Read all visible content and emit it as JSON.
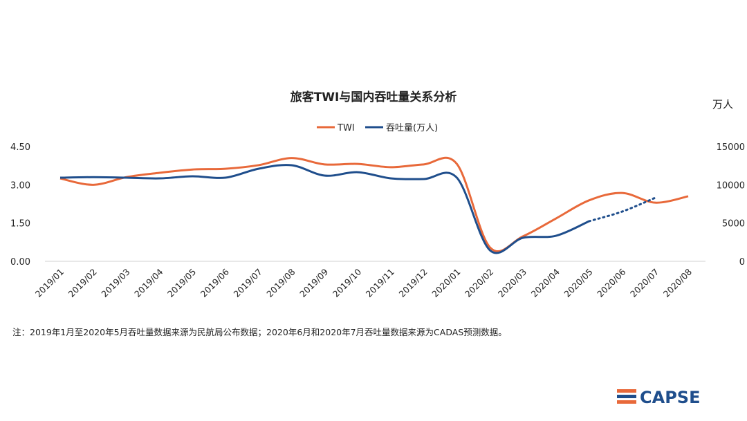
{
  "chart_data": {
    "type": "line",
    "title": "旅客TWI与国内吞吐量关系分析",
    "y2_label": "万人",
    "note": "注：2019年1月至2020年5月吞吐量数据来源为民航局公布数据；2020年6月和2020年7月吞吐量数据来源为CADAS预测数据。",
    "brand": "CAPSE",
    "categories": [
      "2019/01",
      "2019/02",
      "2019/03",
      "2019/04",
      "2019/05",
      "2019/06",
      "2019/07",
      "2019/08",
      "2019/09",
      "2019/10",
      "2019/11",
      "2019/12",
      "2020/01",
      "2020/02",
      "2020/03",
      "2020/04",
      "2020/05",
      "2020/06",
      "2020/07",
      "2020/08"
    ],
    "series": [
      {
        "name": "TWI",
        "color": "#e8693a",
        "values": [
          3.25,
          3.0,
          3.3,
          3.47,
          3.6,
          3.63,
          3.77,
          4.05,
          3.8,
          3.82,
          3.69,
          3.8,
          3.82,
          0.55,
          0.98,
          1.68,
          2.39,
          2.68,
          2.3,
          2.55
        ]
      },
      {
        "name": "吞吐量(万人)",
        "color": "#1f4e8c",
        "axis": "y2",
        "projected_from": "2020/05",
        "values": [
          10930,
          11000,
          10930,
          10840,
          11110,
          10930,
          12100,
          12560,
          11200,
          11650,
          10840,
          10750,
          10930,
          1450,
          3070,
          3340,
          5240,
          6500,
          8300,
          null
        ]
      }
    ],
    "ylim": [
      0,
      4.5
    ],
    "yticks": [
      {
        "value": 0,
        "label": "0.00"
      },
      {
        "value": 1.5,
        "label": "1.50"
      },
      {
        "value": 3,
        "label": "3.00"
      },
      {
        "value": 4.5,
        "label": "4.50"
      }
    ],
    "y2lim": [
      0,
      15000
    ],
    "y2ticks": [
      0,
      5000,
      10000,
      15000
    ],
    "legend": "top"
  }
}
